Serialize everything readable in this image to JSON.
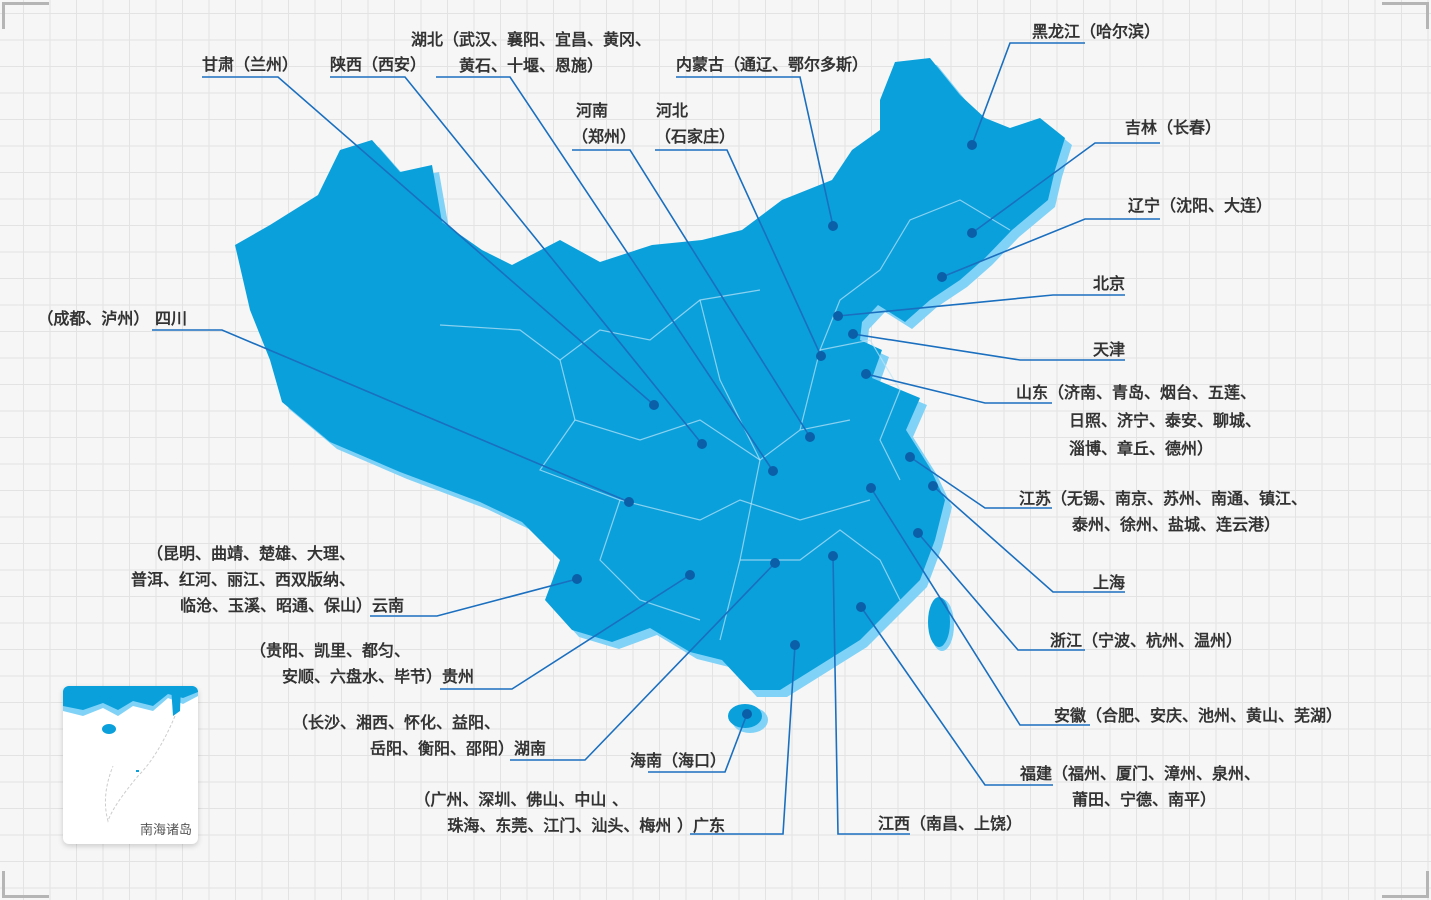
{
  "colors": {
    "land": "#0aa0dc",
    "land_shadow": "#80d2f7",
    "leader": "#1a6fbf",
    "dot": "#0b5fa8",
    "border": "#bfe6f7"
  },
  "labels": [
    {
      "province": "甘肃",
      "lines": [
        "甘肃（兰州）"
      ]
    },
    {
      "province": "陕西",
      "lines": [
        "陕西（西安）"
      ]
    },
    {
      "province": "湖北",
      "lines": [
        "湖北（武汉、襄阳、宜昌、黄冈、",
        "黄石、十堰、恩施）"
      ]
    },
    {
      "province": "河南",
      "lines": [
        "河南",
        "（郑州）"
      ]
    },
    {
      "province": "河北",
      "lines": [
        "河北",
        "（石家庄）"
      ]
    },
    {
      "province": "内蒙古",
      "lines": [
        "内蒙古（通辽、鄂尔多斯）"
      ]
    },
    {
      "province": "黑龙江",
      "lines": [
        "黑龙江（哈尔滨）"
      ]
    },
    {
      "province": "吉林",
      "lines": [
        "吉林（长春）"
      ]
    },
    {
      "province": "辽宁",
      "lines": [
        "辽宁（沈阳、大连）"
      ]
    },
    {
      "province": "北京",
      "lines": [
        "北京"
      ]
    },
    {
      "province": "天津",
      "lines": [
        "天津"
      ]
    },
    {
      "province": "山东",
      "lines": [
        "山东（济南、青岛、烟台、五莲、",
        "日照、济宁、泰安、聊城、",
        "淄博、章丘、德州）"
      ]
    },
    {
      "province": "江苏",
      "lines": [
        "江苏（无锡、南京、苏州、南通、镇江、",
        "泰州、徐州、盐城、连云港）"
      ]
    },
    {
      "province": "上海",
      "lines": [
        "上海"
      ]
    },
    {
      "province": "浙江",
      "lines": [
        "浙江（宁波、杭州、温州）"
      ]
    },
    {
      "province": "安徽",
      "lines": [
        "安徽（合肥、安庆、池州、黄山、芜湖）"
      ]
    },
    {
      "province": "福建",
      "lines": [
        "福建（福州、厦门、漳州、泉州、",
        "莆田、宁德、南平）"
      ]
    },
    {
      "province": "江西",
      "lines": [
        "江西（南昌、上饶）"
      ]
    },
    {
      "province": "广东",
      "lines": [
        "（广州、深圳、佛山、中山 、",
        "珠海、东莞、江门、汕头、梅州 ）广东"
      ]
    },
    {
      "province": "海南",
      "lines": [
        "海南（海口）"
      ]
    },
    {
      "province": "湖南",
      "lines": [
        "（长沙、湘西、怀化、益阳、",
        "岳阳、衡阳、邵阳）湖南"
      ]
    },
    {
      "province": "贵州",
      "lines": [
        "（贵阳、凯里、都匀、",
        "安顺、六盘水、毕节）贵州"
      ]
    },
    {
      "province": "云南",
      "lines": [
        "（昆明、曲靖、楚雄、大理、",
        "普洱、红河、丽江、西双版纳、",
        "临沧、玉溪、昭通、保山）云南"
      ]
    },
    {
      "province": "四川",
      "lines": [
        "（成都、泸州） 四川"
      ]
    }
  ],
  "inset": {
    "label": "南海诸岛"
  }
}
